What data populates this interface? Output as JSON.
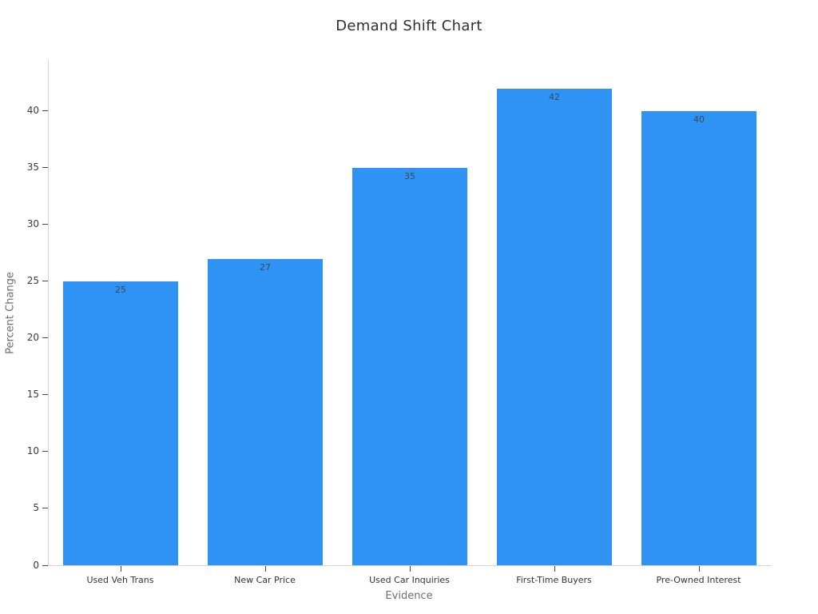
{
  "chart_data": {
    "type": "bar",
    "title": "Demand Shift Chart",
    "xlabel": "Evidence",
    "ylabel": "Percent Change",
    "categories": [
      "Used Veh Trans",
      "New Car Price",
      "Used Car Inquiries",
      "First-Time Buyers",
      "Pre-Owned Interest"
    ],
    "values": [
      25,
      27,
      35,
      42,
      40
    ],
    "value_labels": [
      "25",
      "27",
      "35",
      "42",
      "40"
    ],
    "yticks": [
      0,
      5,
      10,
      15,
      20,
      25,
      30,
      35,
      40
    ],
    "ylim": [
      0,
      44.5
    ],
    "grid": false,
    "legend": "none",
    "bar_color": "#2f93f5",
    "value_label_color": "#3c4a57",
    "axis_line_color": "#d4d4d4",
    "tick_label_color": "#3b3b3b",
    "axis_title_color": "#6e6e6e",
    "title_color": "#2f2f2f",
    "background_color": "#ffffff"
  }
}
